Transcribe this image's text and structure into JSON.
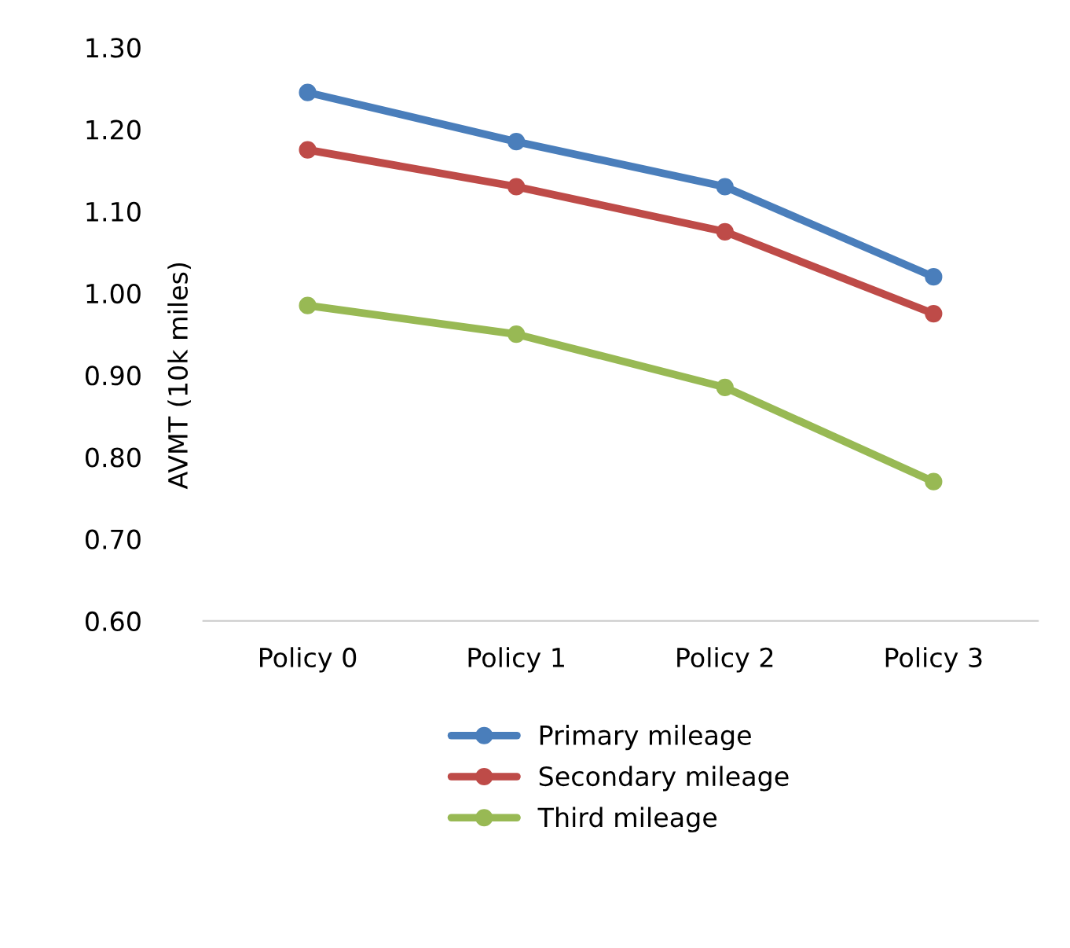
{
  "chart_data": {
    "type": "line",
    "ylabel": "AVMT (10k miles)",
    "categories": [
      "Policy 0",
      "Policy 1",
      "Policy 2",
      "Policy 3"
    ],
    "series": [
      {
        "name": "Primary mileage",
        "color": "#4a7ebb",
        "values": [
          1.245,
          1.185,
          1.13,
          1.02
        ]
      },
      {
        "name": "Secondary mileage",
        "color": "#be4b48",
        "values": [
          1.175,
          1.13,
          1.075,
          0.975
        ]
      },
      {
        "name": "Third mileage",
        "color": "#98b954",
        "values": [
          0.985,
          0.95,
          0.885,
          0.77
        ]
      }
    ],
    "ylim": [
      0.6,
      1.3
    ],
    "yticks": [
      {
        "value": 0.6,
        "label": "0.60"
      },
      {
        "value": 0.7,
        "label": "0.70"
      },
      {
        "value": 0.8,
        "label": "0.80"
      },
      {
        "value": 0.9,
        "label": "0.90"
      },
      {
        "value": 1.0,
        "label": "1.00"
      },
      {
        "value": 1.1,
        "label": "1.10"
      },
      {
        "value": 1.2,
        "label": "1.20"
      },
      {
        "value": 1.3,
        "label": "1.30"
      }
    ],
    "grid": false,
    "legend": "bottom",
    "marker": "circle",
    "line_style": "solid"
  }
}
